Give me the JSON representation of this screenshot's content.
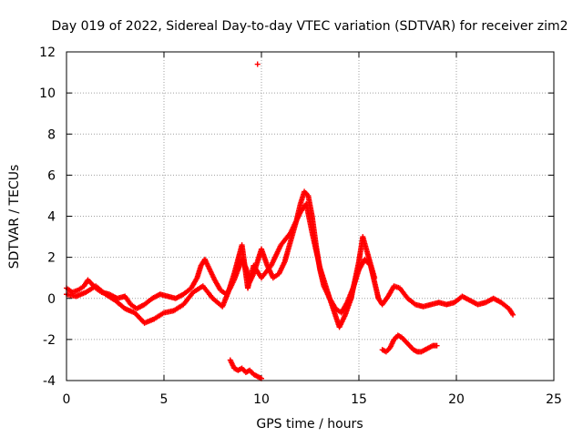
{
  "chart_data": {
    "type": "scatter",
    "title": "Day 019 of 2022, Sidereal Day-to-day VTEC variation (SDTVAR) for receiver zim2",
    "xlabel": "GPS time / hours",
    "ylabel": "SDTVAR / TECUs",
    "xlim": [
      0,
      25
    ],
    "ylim": [
      -4,
      12
    ],
    "xticks": [
      0,
      5,
      10,
      15,
      20,
      25
    ],
    "yticks": [
      -4,
      -2,
      0,
      2,
      4,
      6,
      8,
      10,
      12
    ],
    "grid": true,
    "marker": "+",
    "color": "#ff0000",
    "series": [
      {
        "name": "main-trace",
        "x": [
          0.0,
          0.3,
          0.6,
          0.9,
          1.1,
          1.3,
          1.5,
          1.8,
          2.2,
          2.6,
          3.0,
          3.3,
          3.6,
          4.0,
          4.4,
          4.8,
          5.2,
          5.6,
          6.0,
          6.4,
          6.7,
          6.9,
          7.1,
          7.3,
          7.6,
          7.9,
          8.2,
          8.4,
          8.6,
          8.8,
          9.0,
          9.2,
          9.4,
          9.6,
          9.8,
          10.0,
          10.3,
          10.6,
          10.9,
          11.2,
          11.5,
          11.8,
          12.0,
          12.2,
          12.4,
          12.6,
          12.8,
          13.0,
          13.2,
          13.5,
          13.8,
          14.1,
          14.4,
          14.7,
          15.0,
          15.3,
          15.6,
          15.8,
          16.0,
          16.2,
          16.5,
          16.8,
          17.1,
          17.5,
          17.9,
          18.3,
          18.7,
          19.1,
          19.5,
          19.9,
          20.3,
          20.7,
          21.1,
          21.5,
          21.9,
          22.3,
          22.7,
          22.9
        ],
        "y": [
          0.5,
          0.3,
          0.4,
          0.6,
          0.9,
          0.7,
          0.5,
          0.3,
          0.2,
          0.0,
          0.1,
          -0.3,
          -0.5,
          -0.3,
          0.0,
          0.2,
          0.1,
          0.0,
          0.2,
          0.5,
          1.0,
          1.6,
          1.9,
          1.5,
          0.9,
          0.4,
          0.2,
          0.5,
          0.9,
          1.4,
          1.9,
          1.5,
          0.8,
          1.2,
          1.8,
          2.4,
          1.6,
          1.0,
          1.2,
          1.8,
          2.8,
          3.8,
          4.6,
          5.2,
          5.0,
          4.0,
          2.6,
          1.4,
          0.6,
          0.0,
          -0.5,
          -0.7,
          -0.2,
          0.5,
          1.4,
          1.9,
          1.6,
          0.8,
          0.0,
          -0.3,
          0.1,
          0.6,
          0.5,
          0.0,
          -0.3,
          -0.4,
          -0.3,
          -0.2,
          -0.3,
          -0.2,
          0.1,
          -0.1,
          -0.3,
          -0.2,
          0.0,
          -0.2,
          -0.5,
          -0.8
        ]
      },
      {
        "name": "secondary-trace",
        "x": [
          0.0,
          0.5,
          1.0,
          1.5,
          2.0,
          2.5,
          3.0,
          3.5,
          4.0,
          4.5,
          5.0,
          5.5,
          6.0,
          6.5,
          7.0,
          7.5,
          8.0,
          8.3,
          8.6,
          9.0,
          9.3,
          9.6,
          10.0,
          10.5,
          11.0,
          11.5,
          12.0,
          12.3,
          12.6,
          13.0,
          13.5,
          14.0,
          14.3,
          14.6,
          15.0,
          15.2,
          15.5,
          15.8
        ],
        "y": [
          0.2,
          0.1,
          0.3,
          0.6,
          0.2,
          -0.1,
          -0.5,
          -0.7,
          -1.2,
          -1.0,
          -0.7,
          -0.6,
          -0.3,
          0.3,
          0.6,
          0.0,
          -0.4,
          0.3,
          1.2,
          2.6,
          0.5,
          1.6,
          1.0,
          1.6,
          2.6,
          3.2,
          4.2,
          4.6,
          3.2,
          1.5,
          0.0,
          -1.4,
          -0.8,
          0.0,
          1.8,
          3.0,
          2.0,
          1.0
        ]
      },
      {
        "name": "negative-segment-early",
        "x": [
          8.4,
          8.6,
          8.8,
          9.0,
          9.2,
          9.4,
          9.6,
          9.8,
          10.0
        ],
        "y": [
          -3.0,
          -3.4,
          -3.5,
          -3.4,
          -3.6,
          -3.5,
          -3.7,
          -3.8,
          -3.9
        ]
      },
      {
        "name": "negative-segment-late",
        "x": [
          16.2,
          16.4,
          16.6,
          16.8,
          17.0,
          17.2,
          17.4,
          17.6,
          17.8,
          18.0,
          18.2,
          18.4,
          18.6,
          18.8,
          19.0
        ],
        "y": [
          -2.5,
          -2.6,
          -2.4,
          -2.0,
          -1.8,
          -1.9,
          -2.1,
          -2.3,
          -2.5,
          -2.6,
          -2.6,
          -2.5,
          -2.4,
          -2.3,
          -2.3
        ]
      },
      {
        "name": "outlier",
        "x": [
          9.8
        ],
        "y": [
          11.4
        ]
      }
    ]
  }
}
